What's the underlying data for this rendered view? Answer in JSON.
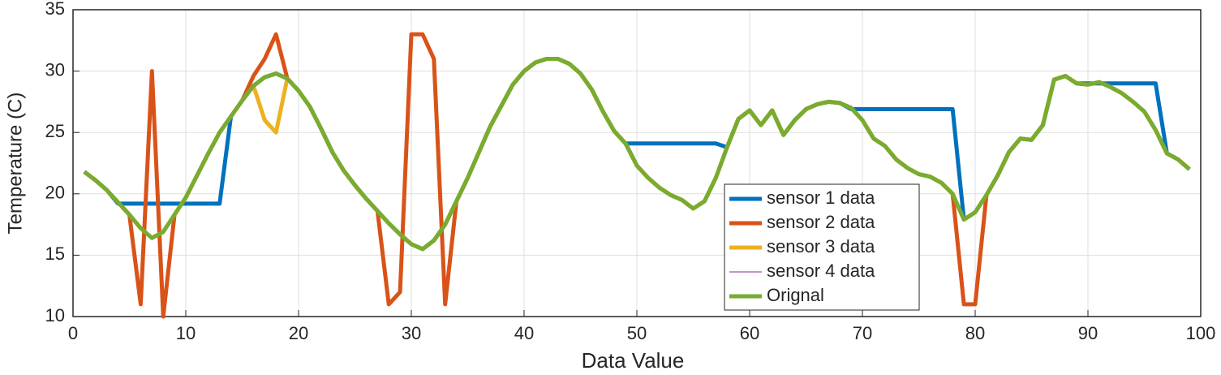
{
  "chart_data": {
    "type": "line",
    "xlabel": "Data Value",
    "ylabel": "Temperature (C)",
    "x": [
      1,
      2,
      3,
      4,
      5,
      6,
      7,
      8,
      9,
      10,
      11,
      12,
      13,
      14,
      15,
      16,
      17,
      18,
      19,
      20,
      21,
      22,
      23,
      24,
      25,
      26,
      27,
      28,
      29,
      30,
      31,
      32,
      33,
      34,
      35,
      36,
      37,
      38,
      39,
      40,
      41,
      42,
      43,
      44,
      45,
      46,
      47,
      48,
      49,
      50,
      51,
      52,
      53,
      54,
      55,
      56,
      57,
      58,
      59,
      60,
      61,
      62,
      63,
      64,
      65,
      66,
      67,
      68,
      69,
      70,
      71,
      72,
      73,
      74,
      75,
      76,
      77,
      78,
      79,
      80,
      81,
      82,
      83,
      84,
      85,
      86,
      87,
      88,
      89,
      90,
      91,
      92,
      93,
      94,
      95,
      96,
      97,
      98,
      99
    ],
    "series": [
      {
        "name": "sensor 1 data",
        "color": "#0072bd",
        "width": 5,
        "values": [
          21.8,
          21.1,
          20.3,
          19.2,
          19.2,
          19.2,
          19.2,
          19.2,
          19.2,
          19.2,
          19.2,
          19.2,
          19.2,
          26.3,
          27.6,
          28.8,
          29.5,
          29.8,
          29.4,
          28.4,
          27.1,
          25.3,
          23.4,
          21.9,
          20.7,
          19.6,
          18.6,
          17.6,
          16.7,
          15.9,
          15.5,
          16.2,
          17.5,
          19.4,
          21.3,
          23.4,
          25.5,
          27.2,
          28.9,
          30.0,
          30.7,
          31.0,
          31.0,
          30.6,
          29.8,
          28.5,
          26.7,
          25.1,
          24.1,
          24.1,
          24.1,
          24.1,
          24.1,
          24.1,
          24.1,
          24.1,
          24.1,
          23.8,
          26.1,
          26.8,
          25.6,
          26.8,
          24.8,
          26.0,
          26.9,
          27.3,
          27.5,
          27.4,
          26.9,
          26.9,
          26.9,
          26.9,
          26.9,
          26.9,
          26.9,
          26.9,
          26.9,
          26.9,
          17.9,
          18.5,
          19.9,
          21.5,
          23.4,
          24.5,
          24.4,
          25.6,
          29.3,
          29.6,
          29.0,
          29.0,
          29.0,
          29.0,
          29.0,
          29.0,
          29.0,
          29.0,
          23.3,
          22.8,
          22.0
        ]
      },
      {
        "name": "sensor 2 data",
        "color": "#d95319",
        "width": 5,
        "values": [
          21.8,
          21.1,
          20.3,
          19.3,
          18.3,
          11,
          30,
          10,
          18.3,
          19.7,
          21.5,
          23.3,
          25.0,
          26.3,
          27.6,
          29.6,
          31,
          33,
          29.4,
          28.4,
          27.1,
          25.3,
          23.4,
          21.9,
          20.7,
          19.6,
          18.6,
          11,
          12,
          33,
          33,
          31,
          11,
          19.4,
          21.3,
          23.4,
          25.5,
          27.2,
          28.9,
          30.0,
          30.7,
          31.0,
          31.0,
          30.6,
          29.8,
          28.5,
          26.7,
          25.1,
          24.1,
          22.3,
          21.3,
          20.5,
          19.9,
          19.5,
          18.8,
          19.4,
          21.3,
          23.8,
          26.1,
          26.8,
          25.6,
          26.8,
          24.8,
          26.0,
          26.9,
          27.3,
          27.5,
          27.4,
          27.0,
          26.0,
          24.5,
          23.9,
          22.8,
          22.1,
          21.6,
          21.4,
          20.9,
          20.0,
          11,
          11,
          19.9,
          21.5,
          23.4,
          24.5,
          24.4,
          25.6,
          29.3,
          29.6,
          29.0,
          28.9,
          29.1,
          28.7,
          28.2,
          27.5,
          26.7,
          25.2,
          23.3,
          22.8,
          22.0
        ]
      },
      {
        "name": "sensor 3 data",
        "color": "#edb120",
        "width": 5,
        "values": [
          21.8,
          21.1,
          20.3,
          19.3,
          18.3,
          17.2,
          16.4,
          16.9,
          18.3,
          19.7,
          21.5,
          23.3,
          25.0,
          26.3,
          27.6,
          28.8,
          26,
          25,
          29.4,
          28.4,
          27.1,
          25.3,
          23.4,
          21.9,
          20.7,
          19.6,
          18.6,
          17.6,
          16.7,
          15.9,
          15.5,
          16.2,
          17.5,
          19.4,
          21.3,
          23.4,
          25.5,
          27.2,
          28.9,
          30.0,
          30.7,
          31.0,
          31.0,
          30.6,
          29.8,
          28.5,
          26.7,
          25.1,
          24.1,
          22.3,
          21.3,
          20.5,
          19.9,
          19.5,
          18.8,
          19.4,
          21.3,
          23.8,
          26.1,
          26.8,
          25.6,
          26.8,
          24.8,
          26.0,
          26.9,
          27.3,
          27.5,
          27.4,
          27.0,
          26.0,
          24.5,
          23.9,
          22.8,
          22.1,
          21.6,
          21.4,
          20.9,
          20.0,
          17.9,
          18.5,
          19.9,
          21.5,
          23.4,
          24.5,
          24.4,
          25.6,
          29.3,
          29.6,
          29.0,
          28.9,
          29.1,
          28.7,
          28.2,
          27.5,
          26.7,
          25.2,
          23.3,
          22.8,
          22.0
        ]
      },
      {
        "name": "sensor 4 data",
        "color": "#7e2f8e",
        "width": 1,
        "values": [
          21.8,
          21.1,
          20.3,
          19.3,
          18.3,
          17.2,
          16.4,
          16.9,
          18.3,
          19.7,
          21.5,
          23.3,
          25.0,
          26.3,
          27.6,
          28.8,
          29.5,
          29.8,
          29.4,
          28.4,
          27.1,
          25.3,
          23.4,
          21.9,
          20.7,
          19.6,
          18.6,
          17.6,
          16.7,
          15.9,
          15.5,
          16.2,
          17.5,
          19.4,
          21.3,
          23.4,
          25.5,
          27.2,
          28.9,
          30.0,
          30.7,
          31.0,
          31.0,
          30.6,
          29.8,
          28.5,
          26.7,
          25.1,
          24.1,
          22.3,
          21.3,
          20.5,
          19.9,
          19.5,
          18.8,
          19.4,
          21.3,
          23.8,
          26.1,
          26.8,
          25.6,
          26.8,
          24.8,
          26.0,
          26.9,
          27.3,
          27.5,
          27.4,
          27.0,
          26.0,
          24.5,
          23.9,
          22.8,
          22.1,
          21.6,
          21.4,
          20.9,
          20.0,
          17.9,
          18.5,
          19.9,
          21.5,
          23.4,
          24.5,
          24.4,
          25.6,
          29.3,
          29.6,
          29.0,
          28.9,
          29.1,
          28.7,
          28.2,
          27.5,
          26.7,
          25.2,
          23.3,
          22.8,
          22.0
        ]
      },
      {
        "name": "Orignal",
        "color": "#77ac30",
        "width": 5,
        "values": [
          21.8,
          21.1,
          20.3,
          19.3,
          18.3,
          17.2,
          16.4,
          16.9,
          18.3,
          19.7,
          21.5,
          23.3,
          25.0,
          26.3,
          27.6,
          28.8,
          29.5,
          29.8,
          29.4,
          28.4,
          27.1,
          25.3,
          23.4,
          21.9,
          20.7,
          19.6,
          18.6,
          17.6,
          16.7,
          15.9,
          15.5,
          16.2,
          17.5,
          19.4,
          21.3,
          23.4,
          25.5,
          27.2,
          28.9,
          30.0,
          30.7,
          31.0,
          31.0,
          30.6,
          29.8,
          28.5,
          26.7,
          25.1,
          24.1,
          22.3,
          21.3,
          20.5,
          19.9,
          19.5,
          18.8,
          19.4,
          21.3,
          23.8,
          26.1,
          26.8,
          25.6,
          26.8,
          24.8,
          26.0,
          26.9,
          27.3,
          27.5,
          27.4,
          27.0,
          26.0,
          24.5,
          23.9,
          22.8,
          22.1,
          21.6,
          21.4,
          20.9,
          20.0,
          17.9,
          18.5,
          19.9,
          21.5,
          23.4,
          24.5,
          24.4,
          25.6,
          29.3,
          29.6,
          29.0,
          28.9,
          29.1,
          28.7,
          28.2,
          27.5,
          26.7,
          25.2,
          23.3,
          22.8,
          22.0
        ]
      }
    ],
    "xlim": [
      0,
      100
    ],
    "xticks": [
      0,
      10,
      20,
      30,
      40,
      50,
      60,
      70,
      80,
      90,
      100
    ],
    "ylim": [
      10,
      35
    ],
    "yticks": [
      10,
      15,
      20,
      25,
      30,
      35
    ],
    "grid": true,
    "legend": "southeast"
  }
}
